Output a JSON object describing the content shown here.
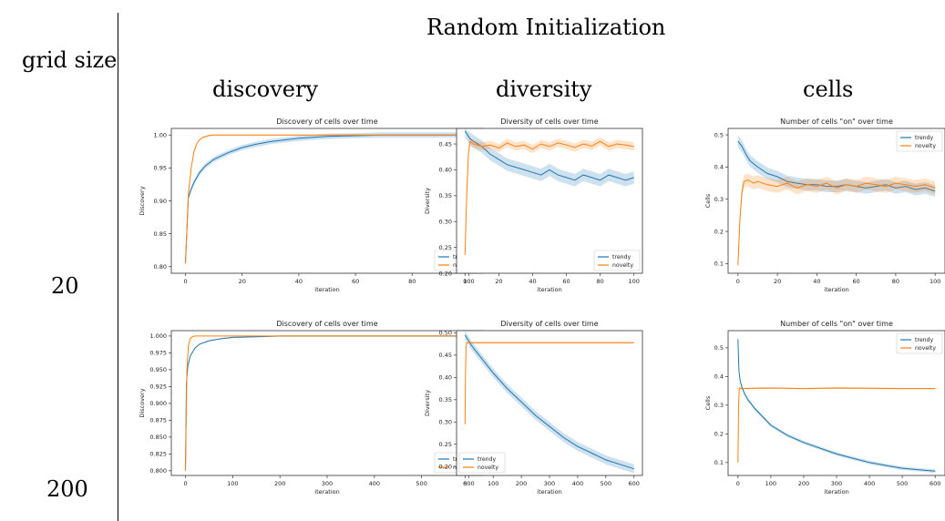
{
  "figure": {
    "title": "Random Initialization",
    "row_header": "grid size",
    "rows": [
      "20",
      "200"
    ],
    "columns": [
      "discovery",
      "diversity",
      "cells"
    ]
  },
  "colors": {
    "trendy": "#1f77b4",
    "novelty": "#ff7f0e"
  },
  "chart_data": [
    {
      "type": "line",
      "title": "Discovery of cells over time",
      "xlabel": "iteration",
      "ylabel": "Discovery",
      "xlim": [
        -5,
        105
      ],
      "ylim": [
        0.79,
        1.01
      ],
      "xticks": [
        0,
        20,
        40,
        60,
        80,
        100
      ],
      "xtick_labels": [
        "0",
        "20",
        "40",
        "60",
        "80",
        "100"
      ],
      "yticks": [
        0.8,
        0.85,
        0.9,
        0.95,
        1.0
      ],
      "ytick_labels": [
        "0.80",
        "0.85",
        "0.90",
        "0.95",
        "1.00"
      ],
      "legend": "lower-right",
      "series": [
        {
          "name": "trendy",
          "x": [
            0,
            1,
            2,
            3,
            5,
            7,
            10,
            15,
            20,
            25,
            30,
            40,
            50,
            60,
            70,
            80,
            90,
            100
          ],
          "y": [
            0.805,
            0.905,
            0.918,
            0.928,
            0.943,
            0.953,
            0.963,
            0.973,
            0.981,
            0.986,
            0.99,
            0.995,
            0.998,
            0.999,
            1.0,
            1.0,
            1.0,
            1.0
          ],
          "band": 0.004
        },
        {
          "name": "novelty",
          "x": [
            0,
            1,
            2,
            3,
            4,
            5,
            6,
            8,
            10,
            15,
            20,
            30,
            40,
            60,
            80,
            100
          ],
          "y": [
            0.805,
            0.91,
            0.95,
            0.975,
            0.987,
            0.993,
            0.996,
            0.999,
            1.0,
            1.0,
            1.0,
            1.0,
            1.0,
            1.0,
            1.0,
            1.0
          ],
          "band": 0.001
        }
      ]
    },
    {
      "type": "line",
      "title": "Diversity of cells over time",
      "xlabel": "iteration",
      "ylabel": "Diversity",
      "xlim": [
        -5,
        105
      ],
      "ylim": [
        0.2,
        0.48
      ],
      "xticks": [
        0,
        20,
        40,
        60,
        80,
        100
      ],
      "xtick_labels": [
        "0",
        "20",
        "40",
        "60",
        "80",
        "100"
      ],
      "yticks": [
        0.2,
        0.25,
        0.3,
        0.35,
        0.4,
        0.45
      ],
      "ytick_labels": [
        "0.20",
        "0.25",
        "0.30",
        "0.35",
        "0.40",
        "0.45"
      ],
      "legend": "lower-right",
      "series": [
        {
          "name": "trendy",
          "x": [
            0,
            3,
            5,
            10,
            15,
            20,
            25,
            30,
            35,
            40,
            45,
            50,
            55,
            60,
            65,
            70,
            75,
            80,
            85,
            90,
            95,
            100
          ],
          "y": [
            0.475,
            0.46,
            0.455,
            0.445,
            0.43,
            0.42,
            0.41,
            0.405,
            0.4,
            0.395,
            0.39,
            0.4,
            0.39,
            0.385,
            0.38,
            0.39,
            0.385,
            0.38,
            0.39,
            0.385,
            0.38,
            0.385
          ],
          "band": 0.012
        },
        {
          "name": "novelty",
          "x": [
            0,
            1,
            2,
            3,
            5,
            10,
            15,
            20,
            25,
            30,
            35,
            40,
            45,
            50,
            55,
            60,
            65,
            70,
            75,
            80,
            85,
            90,
            95,
            100
          ],
          "y": [
            0.235,
            0.35,
            0.43,
            0.455,
            0.45,
            0.445,
            0.448,
            0.442,
            0.452,
            0.445,
            0.448,
            0.44,
            0.45,
            0.445,
            0.452,
            0.448,
            0.443,
            0.45,
            0.446,
            0.455,
            0.445,
            0.45,
            0.448,
            0.445
          ],
          "band": 0.008
        }
      ]
    },
    {
      "type": "line",
      "title": "Number of cells \"on\" over time",
      "xlabel": "iteration",
      "ylabel": "Cells",
      "xlim": [
        -5,
        105
      ],
      "ylim": [
        0.07,
        0.52
      ],
      "xticks": [
        0,
        20,
        40,
        60,
        80,
        100
      ],
      "xtick_labels": [
        "0",
        "20",
        "40",
        "60",
        "80",
        "100"
      ],
      "yticks": [
        0.1,
        0.2,
        0.3,
        0.4,
        0.5
      ],
      "ytick_labels": [
        "0.1",
        "0.2",
        "0.3",
        "0.4",
        "0.5"
      ],
      "legend": "upper-right",
      "series": [
        {
          "name": "trendy",
          "x": [
            0,
            2,
            4,
            6,
            8,
            10,
            15,
            20,
            25,
            30,
            35,
            40,
            45,
            50,
            55,
            60,
            65,
            70,
            75,
            80,
            85,
            90,
            95,
            100
          ],
          "y": [
            0.48,
            0.465,
            0.44,
            0.42,
            0.41,
            0.4,
            0.38,
            0.37,
            0.355,
            0.35,
            0.345,
            0.345,
            0.34,
            0.34,
            0.345,
            0.34,
            0.335,
            0.34,
            0.345,
            0.335,
            0.34,
            0.33,
            0.335,
            0.325
          ],
          "band": 0.018
        },
        {
          "name": "novelty",
          "x": [
            0,
            1,
            2,
            3,
            5,
            8,
            10,
            15,
            20,
            25,
            30,
            35,
            40,
            45,
            50,
            55,
            60,
            65,
            70,
            75,
            80,
            85,
            90,
            95,
            100
          ],
          "y": [
            0.095,
            0.24,
            0.32,
            0.355,
            0.36,
            0.35,
            0.355,
            0.345,
            0.34,
            0.35,
            0.335,
            0.345,
            0.34,
            0.35,
            0.335,
            0.345,
            0.34,
            0.35,
            0.345,
            0.34,
            0.35,
            0.345,
            0.34,
            0.345,
            0.335
          ],
          "band": 0.02
        }
      ]
    },
    {
      "type": "line",
      "title": "Discovery of cells over time",
      "xlabel": "iteration",
      "ylabel": "Discovery",
      "xlim": [
        -30,
        630
      ],
      "ylim": [
        0.793,
        1.008
      ],
      "xticks": [
        0,
        100,
        200,
        300,
        400,
        500,
        600
      ],
      "xtick_labels": [
        "0",
        "100",
        "200",
        "300",
        "400",
        "500",
        "600"
      ],
      "yticks": [
        0.8,
        0.825,
        0.85,
        0.875,
        0.9,
        0.925,
        0.95,
        0.975,
        1.0
      ],
      "ytick_labels": [
        "0.800",
        "0.825",
        "0.850",
        "0.875",
        "0.900",
        "0.925",
        "0.950",
        "0.975",
        "1.000"
      ],
      "legend": "lower-right",
      "series": [
        {
          "name": "trendy",
          "x": [
            0,
            2,
            5,
            10,
            20,
            30,
            50,
            75,
            100,
            150,
            200,
            300,
            400,
            500,
            600
          ],
          "y": [
            0.8,
            0.93,
            0.955,
            0.97,
            0.982,
            0.988,
            0.993,
            0.996,
            0.998,
            0.999,
            1.0,
            1.0,
            1.0,
            1.0,
            1.0
          ],
          "band": 0.001
        },
        {
          "name": "novelty",
          "x": [
            0,
            3,
            6,
            10,
            15,
            20,
            30,
            50,
            100,
            200,
            300,
            400,
            500,
            600
          ],
          "y": [
            0.8,
            0.95,
            0.985,
            0.996,
            0.999,
            1.0,
            1.0,
            1.0,
            1.0,
            1.0,
            1.0,
            1.0,
            1.0,
            1.0
          ],
          "band": 0.0005
        }
      ]
    },
    {
      "type": "line",
      "title": "Diversity of cells over time",
      "xlabel": "iteration",
      "ylabel": "Diversity",
      "xlim": [
        -30,
        630
      ],
      "ylim": [
        0.18,
        0.505
      ],
      "xticks": [
        0,
        100,
        200,
        300,
        400,
        500,
        600
      ],
      "xtick_labels": [
        "0",
        "100",
        "200",
        "300",
        "400",
        "500",
        "600"
      ],
      "yticks": [
        0.2,
        0.25,
        0.3,
        0.35,
        0.4,
        0.45,
        0.5
      ],
      "ytick_labels": [
        "0.20",
        "0.25",
        "0.30",
        "0.35",
        "0.40",
        "0.45",
        "0.50"
      ],
      "legend": "lower-left",
      "series": [
        {
          "name": "trendy",
          "x": [
            0,
            25,
            50,
            100,
            150,
            200,
            250,
            300,
            350,
            400,
            450,
            500,
            550,
            600
          ],
          "y": [
            0.495,
            0.47,
            0.45,
            0.41,
            0.375,
            0.345,
            0.315,
            0.29,
            0.265,
            0.245,
            0.23,
            0.215,
            0.205,
            0.195
          ],
          "band": 0.01
        },
        {
          "name": "novelty",
          "x": [
            0,
            2,
            4,
            6,
            10,
            50,
            100,
            200,
            300,
            400,
            500,
            600
          ],
          "y": [
            0.295,
            0.42,
            0.47,
            0.478,
            0.478,
            0.478,
            0.478,
            0.478,
            0.478,
            0.478,
            0.478,
            0.478
          ],
          "band": 0.002
        }
      ]
    },
    {
      "type": "line",
      "title": "Number of cells \"on\" over time",
      "xlabel": "iteration",
      "ylabel": "Cells",
      "xlim": [
        -30,
        630
      ],
      "ylim": [
        0.055,
        0.56
      ],
      "xticks": [
        0,
        100,
        200,
        300,
        400,
        500,
        600
      ],
      "xtick_labels": [
        "0",
        "100",
        "200",
        "300",
        "400",
        "500",
        "600"
      ],
      "yticks": [
        0.1,
        0.2,
        0.3,
        0.4,
        0.5
      ],
      "ytick_labels": [
        "0.1",
        "0.2",
        "0.3",
        "0.4",
        "0.5"
      ],
      "legend": "upper-right",
      "series": [
        {
          "name": "trendy",
          "x": [
            0,
            3,
            6,
            10,
            20,
            30,
            50,
            75,
            100,
            150,
            200,
            250,
            300,
            350,
            400,
            450,
            500,
            550,
            600
          ],
          "y": [
            0.53,
            0.42,
            0.39,
            0.37,
            0.34,
            0.32,
            0.29,
            0.26,
            0.23,
            0.195,
            0.17,
            0.15,
            0.13,
            0.115,
            0.1,
            0.09,
            0.08,
            0.075,
            0.07
          ],
          "band": 0.006
        },
        {
          "name": "novelty",
          "x": [
            0,
            2,
            4,
            6,
            10,
            50,
            100,
            200,
            300,
            400,
            500,
            600
          ],
          "y": [
            0.1,
            0.3,
            0.36,
            0.36,
            0.358,
            0.359,
            0.36,
            0.358,
            0.36,
            0.359,
            0.358,
            0.358
          ],
          "band": 0.003
        }
      ]
    }
  ]
}
